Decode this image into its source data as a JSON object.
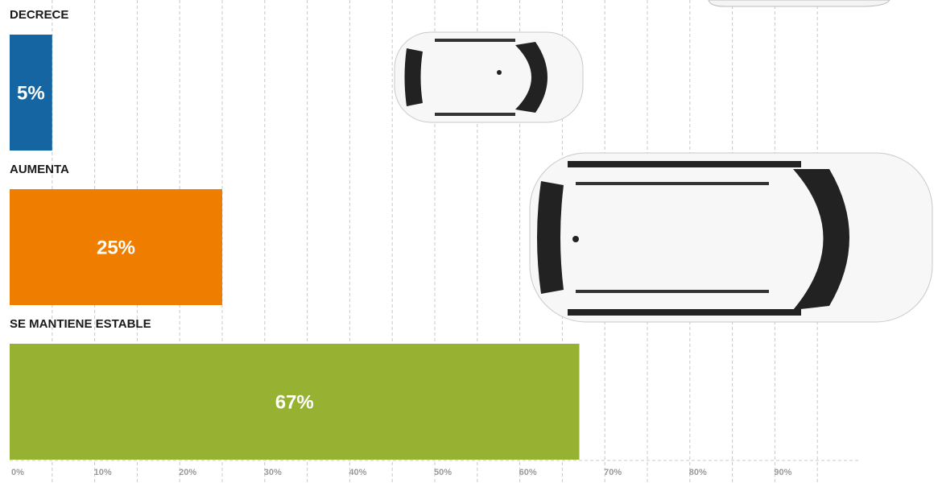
{
  "chart_data": {
    "type": "hbar",
    "categories": [
      "DECRECE",
      "AUMENTA",
      "SE MANTIENE ESTABLE"
    ],
    "values": [
      5,
      25,
      67
    ],
    "value_labels": [
      "5%",
      "25%",
      "67%"
    ],
    "colors": [
      "#1565a3",
      "#ef7d00",
      "#97b232"
    ],
    "xlim": [
      0,
      100
    ],
    "xticks": [
      {
        "value": 0,
        "label": "0%"
      },
      {
        "value": 10,
        "label": "10%"
      },
      {
        "value": 20,
        "label": "20%"
      },
      {
        "value": 30,
        "label": "30%"
      },
      {
        "value": 40,
        "label": "40%"
      },
      {
        "value": 50,
        "label": "50%"
      },
      {
        "value": 60,
        "label": "60%"
      },
      {
        "value": 70,
        "label": "70%"
      },
      {
        "value": 80,
        "label": "80%"
      },
      {
        "value": 90,
        "label": "90%"
      }
    ],
    "minor_xticks": [
      5,
      15,
      25,
      35,
      45,
      55,
      65,
      75,
      85,
      95
    ],
    "grid": true
  }
}
